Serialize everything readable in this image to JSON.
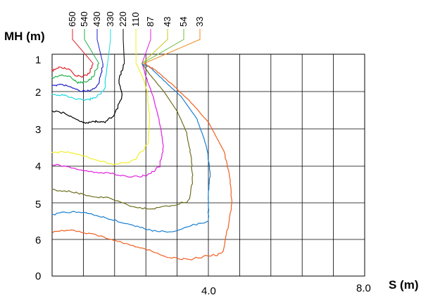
{
  "chart_data": {
    "type": "line",
    "title": "",
    "xlabel": "S (m)",
    "ylabel": "MH (m)",
    "x_tick_labels": [
      "4.0",
      "8.0"
    ],
    "y_tick_labels": [
      "1",
      "2",
      "3",
      "4",
      "5",
      "6",
      "0"
    ],
    "x_range": [
      0,
      8
    ],
    "grid": true,
    "series": [
      {
        "name": "650",
        "color": "#e0202a",
        "values": [
          [
            0.0,
            1.3
          ],
          [
            0.2,
            1.2
          ],
          [
            0.45,
            1.25
          ],
          [
            0.6,
            1.45
          ],
          [
            0.8,
            1.45
          ],
          [
            0.95,
            1.35
          ],
          [
            1.05,
            1.1
          ]
        ]
      },
      {
        "name": "540",
        "color": "#22b24c",
        "values": [
          [
            0.0,
            1.5
          ],
          [
            0.2,
            1.42
          ],
          [
            0.45,
            1.45
          ],
          [
            0.65,
            1.62
          ],
          [
            0.9,
            1.6
          ],
          [
            1.05,
            1.45
          ],
          [
            1.2,
            1.1
          ]
        ]
      },
      {
        "name": "430",
        "color": "#1f1fc8",
        "values": [
          [
            0.0,
            1.72
          ],
          [
            0.2,
            1.66
          ],
          [
            0.45,
            1.72
          ],
          [
            0.7,
            1.85
          ],
          [
            1.0,
            1.85
          ],
          [
            1.2,
            1.65
          ],
          [
            1.3,
            1.1
          ]
        ]
      },
      {
        "name": "330",
        "color": "#22d8e0",
        "values": [
          [
            0.0,
            1.95
          ],
          [
            0.3,
            1.96
          ],
          [
            0.6,
            2.08
          ],
          [
            0.9,
            2.1
          ],
          [
            1.15,
            2.0
          ],
          [
            1.35,
            1.8
          ],
          [
            1.42,
            1.1
          ]
        ]
      },
      {
        "name": "220",
        "color": "#000000",
        "values": [
          [
            0.0,
            2.4
          ],
          [
            0.3,
            2.45
          ],
          [
            0.6,
            2.62
          ],
          [
            0.85,
            2.72
          ],
          [
            1.1,
            2.68
          ],
          [
            1.35,
            2.7
          ],
          [
            1.6,
            2.5
          ],
          [
            1.8,
            2.0
          ],
          [
            1.7,
            1.55
          ],
          [
            1.85,
            1.1
          ]
        ]
      },
      {
        "name": "110",
        "color": "#f0f028",
        "values": [
          [
            0.0,
            3.55
          ],
          [
            0.4,
            3.5
          ],
          [
            0.8,
            3.62
          ],
          [
            1.2,
            3.75
          ],
          [
            1.6,
            3.85
          ],
          [
            2.1,
            3.75
          ],
          [
            2.45,
            3.3
          ],
          [
            2.5,
            2.6
          ],
          [
            2.45,
            2.0
          ],
          [
            2.35,
            1.55
          ],
          [
            2.15,
            1.1
          ]
        ]
      },
      {
        "name": "87",
        "color": "#e020e0",
        "values": [
          [
            0.0,
            3.85
          ],
          [
            0.5,
            3.95
          ],
          [
            1.0,
            4.05
          ],
          [
            1.5,
            4.1
          ],
          [
            2.0,
            4.2
          ],
          [
            2.45,
            4.15
          ],
          [
            2.75,
            3.9
          ],
          [
            2.85,
            3.35
          ],
          [
            2.75,
            2.7
          ],
          [
            2.6,
            2.05
          ],
          [
            2.45,
            1.6
          ],
          [
            2.3,
            1.1
          ]
        ]
      },
      {
        "name": "43",
        "color": "#6e6e1e",
        "values": [
          [
            0.0,
            4.55
          ],
          [
            0.5,
            4.6
          ],
          [
            1.0,
            4.72
          ],
          [
            1.5,
            4.78
          ],
          [
            2.0,
            5.0
          ],
          [
            2.5,
            5.08
          ],
          [
            3.0,
            5.0
          ],
          [
            3.5,
            4.85
          ],
          [
            3.6,
            4.3
          ],
          [
            3.55,
            3.6
          ],
          [
            3.45,
            3.0
          ],
          [
            3.2,
            2.4
          ],
          [
            2.85,
            1.85
          ],
          [
            2.5,
            1.4
          ],
          [
            2.3,
            1.1
          ]
        ]
      },
      {
        "name": "54",
        "color": "#1a7fd0",
        "values": [
          [
            0.0,
            5.22
          ],
          [
            0.5,
            5.15
          ],
          [
            1.0,
            5.2
          ],
          [
            1.5,
            5.35
          ],
          [
            2.0,
            5.5
          ],
          [
            2.5,
            5.65
          ],
          [
            3.0,
            5.7
          ],
          [
            3.5,
            5.55
          ],
          [
            4.0,
            5.4
          ],
          [
            4.0,
            4.8
          ],
          [
            4.05,
            4.1
          ],
          [
            3.95,
            3.35
          ],
          [
            3.7,
            2.6
          ],
          [
            3.3,
            2.0
          ],
          [
            2.9,
            1.6
          ],
          [
            2.5,
            1.2
          ],
          [
            2.3,
            1.1
          ]
        ]
      },
      {
        "name": "33",
        "color": "#f06020",
        "values": [
          [
            0.0,
            5.7
          ],
          [
            0.5,
            5.65
          ],
          [
            1.0,
            5.75
          ],
          [
            1.5,
            5.9
          ],
          [
            2.0,
            6.05
          ],
          [
            2.5,
            6.2
          ],
          [
            3.0,
            6.4
          ],
          [
            3.5,
            6.45
          ],
          [
            4.0,
            6.35
          ],
          [
            4.35,
            6.3
          ],
          [
            4.5,
            5.6
          ],
          [
            4.6,
            4.9
          ],
          [
            4.55,
            4.2
          ],
          [
            4.4,
            3.5
          ],
          [
            4.0,
            2.7
          ],
          [
            3.5,
            2.1
          ],
          [
            3.0,
            1.6
          ],
          [
            2.6,
            1.25
          ],
          [
            2.35,
            1.1
          ]
        ]
      }
    ],
    "label_colors": {
      "650": "#e0202a",
      "540": "#22b24c",
      "430": "#1f1fc8",
      "330": "#22d8e0",
      "220": "#000000",
      "110": "#f0f028",
      "87": "#e020e0",
      "43": "#c8c820",
      "54": "#6fbf3a",
      "33": "#f08a20"
    }
  }
}
